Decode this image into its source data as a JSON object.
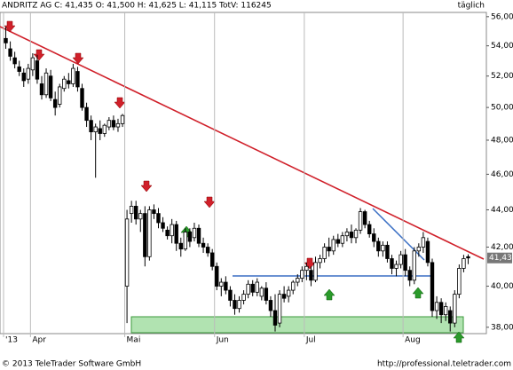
{
  "chart_data": {
    "type": "candlestick",
    "title": "ANDRITZ AG C: 41,435 O: 41,500 H: 41,625 L: 41,115 TotV: 116245",
    "interval_label": "täglich",
    "last_label": "41,435",
    "log_scale": true,
    "ylim": [
      37700,
      56300
    ],
    "yticks": [
      {
        "value": 38000,
        "label": "38,000"
      },
      {
        "value": 40000,
        "label": "40,000"
      },
      {
        "value": 42000,
        "label": "42,000"
      },
      {
        "value": 44000,
        "label": "44,000"
      },
      {
        "value": 46000,
        "label": "46,000"
      },
      {
        "value": 48000,
        "label": "48,000"
      },
      {
        "value": 50000,
        "label": "50,000"
      },
      {
        "value": 52000,
        "label": "52,000"
      },
      {
        "value": 54000,
        "label": "54,000"
      },
      {
        "value": 56000,
        "label": "56,000"
      }
    ],
    "categories": [
      "'13",
      null,
      null,
      null,
      null,
      null,
      "Apr",
      null,
      null,
      null,
      null,
      null,
      null,
      null,
      null,
      null,
      null,
      null,
      null,
      null,
      null,
      null,
      null,
      null,
      null,
      null,
      null,
      "Mai",
      null,
      null,
      null,
      null,
      null,
      null,
      null,
      null,
      null,
      null,
      null,
      null,
      null,
      null,
      null,
      null,
      null,
      null,
      null,
      "Jun",
      null,
      null,
      null,
      null,
      null,
      null,
      null,
      null,
      null,
      null,
      null,
      null,
      null,
      null,
      null,
      null,
      null,
      null,
      null,
      "Jul",
      null,
      null,
      null,
      null,
      null,
      null,
      null,
      null,
      null,
      null,
      null,
      null,
      null,
      null,
      null,
      null,
      null,
      null,
      null,
      null,
      null,
      "Aug",
      null,
      null,
      null,
      null,
      null,
      null,
      null,
      null,
      null,
      null,
      null,
      null,
      null,
      null
    ],
    "open": [
      54500,
      53800,
      53200,
      52600,
      52200,
      51800,
      52400,
      53000,
      51500,
      50800,
      52000,
      50500,
      50200,
      51200,
      51700,
      51500,
      52300,
      51200,
      50000,
      49200,
      48500,
      48700,
      48400,
      48800,
      49200,
      48800,
      49000,
      40000,
      43800,
      44200,
      43500,
      43800,
      41500,
      44000,
      43800,
      43300,
      42900,
      42600,
      43200,
      42200,
      41900,
      42800,
      42500,
      43000,
      42200,
      42000,
      41700,
      41000,
      40000,
      40200,
      39800,
      39300,
      38900,
      39300,
      39600,
      40100,
      39700,
      39500,
      39900,
      39300,
      38800,
      38200,
      39600,
      39500,
      39800,
      40200,
      40400,
      40800,
      40800,
      40300,
      41200,
      41400,
      42000,
      41800,
      42400,
      42200,
      42600,
      42800,
      42500,
      42900,
      43900,
      43200,
      42700,
      42300,
      41800,
      42100,
      41400,
      40900,
      41100,
      41600,
      40800,
      40300,
      41800,
      42000,
      42300,
      41200,
      38800,
      39200,
      38600,
      38800,
      38200,
      39600,
      40900,
      41500
    ],
    "high": [
      55300,
      54300,
      53600,
      53000,
      52500,
      52800,
      53500,
      53400,
      52000,
      52500,
      52400,
      51000,
      51500,
      52000,
      52200,
      52800,
      52600,
      51500,
      50300,
      49500,
      49000,
      49200,
      49000,
      49400,
      49500,
      49300,
      49600,
      44000,
      44500,
      44500,
      44000,
      44200,
      44200,
      44300,
      44100,
      43600,
      43100,
      43500,
      43400,
      42500,
      43000,
      43000,
      43300,
      43200,
      42500,
      42200,
      41900,
      41200,
      40400,
      40500,
      40000,
      39600,
      39500,
      39800,
      40300,
      40300,
      40400,
      40000,
      40200,
      39500,
      39600,
      39800,
      40000,
      40000,
      40300,
      40600,
      41000,
      41200,
      41000,
      41500,
      41600,
      42200,
      42500,
      42600,
      42700,
      42800,
      43000,
      43200,
      43000,
      44100,
      44000,
      43400,
      43000,
      42500,
      42300,
      42300,
      41600,
      41300,
      41800,
      41900,
      41000,
      42000,
      42200,
      42800,
      42500,
      41400,
      39500,
      39400,
      39200,
      39000,
      39800,
      41100,
      41600,
      41625
    ],
    "low": [
      53800,
      53000,
      52500,
      52000,
      51300,
      51500,
      52000,
      51500,
      50500,
      50600,
      50400,
      49500,
      50000,
      51000,
      51200,
      51300,
      51000,
      49800,
      48800,
      48000,
      45800,
      48000,
      48200,
      48600,
      48600,
      48500,
      48800,
      38200,
      43300,
      43200,
      42800,
      41000,
      41300,
      43500,
      43000,
      42800,
      42400,
      42200,
      41800,
      41500,
      41800,
      42000,
      42300,
      42000,
      41700,
      41500,
      40800,
      39800,
      39500,
      39600,
      39000,
      38600,
      38700,
      39100,
      39400,
      39500,
      39500,
      39300,
      39100,
      38500,
      37800,
      38000,
      39200,
      39200,
      39600,
      40000,
      40200,
      40300,
      40000,
      40200,
      40900,
      41200,
      41500,
      41600,
      42000,
      42000,
      42300,
      42200,
      42200,
      42700,
      43000,
      42500,
      42000,
      41500,
      41500,
      41200,
      40600,
      40500,
      40900,
      40500,
      40000,
      40100,
      41500,
      41700,
      41000,
      38500,
      38400,
      38200,
      38300,
      37800,
      38000,
      39400,
      40700,
      41115
    ],
    "close": [
      54200,
      53300,
      52800,
      52300,
      51700,
      52500,
      53200,
      51800,
      50800,
      52200,
      50600,
      50000,
      51300,
      51800,
      51500,
      52500,
      51300,
      50000,
      49200,
      48500,
      48800,
      48400,
      48900,
      49200,
      48800,
      49000,
      49500,
      43500,
      44200,
      43500,
      43800,
      41500,
      44000,
      43800,
      43300,
      43000,
      42600,
      43200,
      42200,
      41900,
      42800,
      42300,
      43000,
      42200,
      42000,
      41700,
      41000,
      40000,
      40200,
      39800,
      39300,
      38900,
      39300,
      39600,
      40100,
      39700,
      40200,
      39900,
      39300,
      38800,
      38100,
      39600,
      39400,
      39800,
      40200,
      40400,
      40800,
      41000,
      40300,
      41200,
      41400,
      42000,
      41800,
      42400,
      42200,
      42600,
      42800,
      42500,
      42900,
      43900,
      43200,
      42700,
      42300,
      41800,
      42100,
      41400,
      40900,
      41100,
      41600,
      40800,
      40300,
      41800,
      42000,
      42500,
      41200,
      38800,
      39200,
      38600,
      39000,
      38200,
      39600,
      40900,
      41400,
      41435
    ]
  },
  "footer": {
    "copyright": "© 2013 TeleTrader Software GmbH",
    "url": "http://professional.teletrader.com"
  }
}
